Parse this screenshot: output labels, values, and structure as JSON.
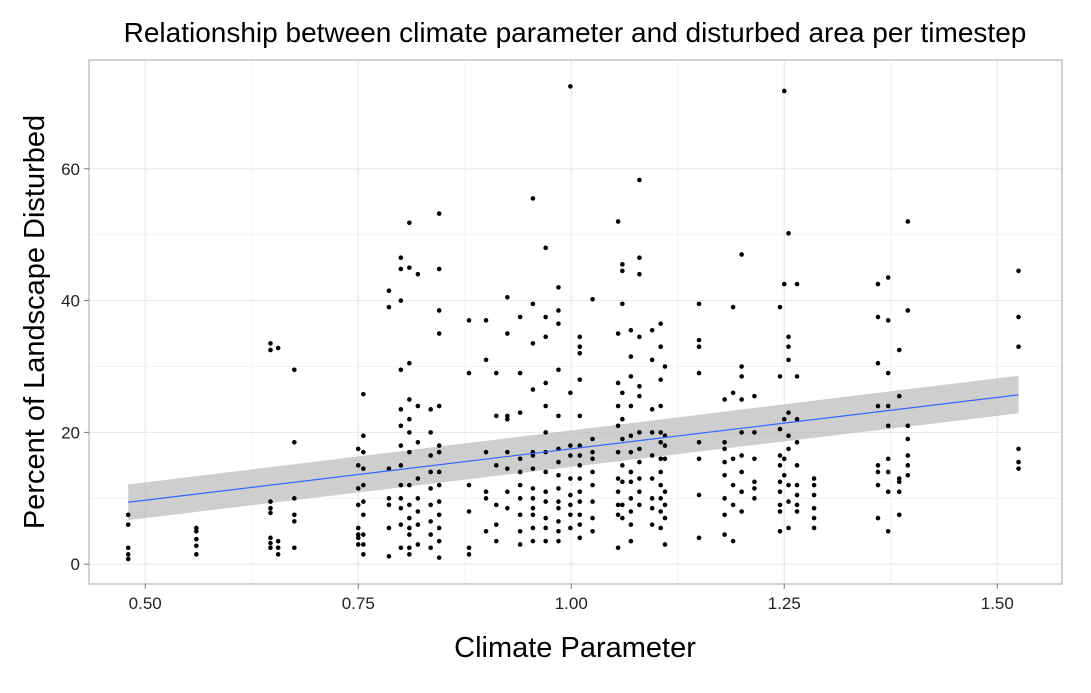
{
  "chart_data": {
    "type": "scatter",
    "title": "Relationship between climate parameter and disturbed area per timestep",
    "xlabel": "Climate Parameter",
    "ylabel": "Percent of Landscape Disturbed",
    "xlim": [
      0.434,
      1.576
    ],
    "ylim": [
      -3,
      76.5
    ],
    "x_ticks": [
      0.5,
      0.75,
      1.0,
      1.25,
      1.5
    ],
    "x_tick_labels": [
      "0.50",
      "0.75",
      "1.00",
      "1.25",
      "1.50"
    ],
    "y_ticks": [
      0,
      20,
      40,
      60
    ],
    "y_tick_labels": [
      "0",
      "20",
      "40",
      "60"
    ],
    "grid": true,
    "fit": {
      "method": "linear",
      "x": [
        0.48,
        1.525
      ],
      "y": [
        9.4,
        25.7
      ],
      "ci_lower": [
        6.7,
        22.9
      ],
      "ci_upper": [
        12.1,
        28.6
      ],
      "line_color": "#3366FF",
      "band_color": "#BEBEBE"
    },
    "points": [
      [
        0.48,
        7.5
      ],
      [
        0.48,
        6.0
      ],
      [
        0.48,
        2.5
      ],
      [
        0.48,
        1.5
      ],
      [
        0.48,
        0.8
      ],
      [
        0.56,
        5.5
      ],
      [
        0.56,
        5.0
      ],
      [
        0.56,
        3.8
      ],
      [
        0.56,
        2.8
      ],
      [
        0.56,
        1.5
      ],
      [
        0.647,
        33.5
      ],
      [
        0.647,
        32.5
      ],
      [
        0.647,
        9.5
      ],
      [
        0.647,
        8.5
      ],
      [
        0.647,
        7.8
      ],
      [
        0.647,
        4.0
      ],
      [
        0.647,
        3.2
      ],
      [
        0.647,
        2.5
      ],
      [
        0.656,
        32.8
      ],
      [
        0.656,
        3.5
      ],
      [
        0.656,
        2.5
      ],
      [
        0.656,
        1.5
      ],
      [
        0.675,
        29.5
      ],
      [
        0.675,
        18.5
      ],
      [
        0.675,
        10.0
      ],
      [
        0.675,
        7.5
      ],
      [
        0.675,
        6.5
      ],
      [
        0.675,
        2.5
      ],
      [
        0.75,
        17.5
      ],
      [
        0.75,
        15.0
      ],
      [
        0.75,
        11.5
      ],
      [
        0.75,
        9.0
      ],
      [
        0.75,
        5.5
      ],
      [
        0.75,
        4.5
      ],
      [
        0.75,
        4.0
      ],
      [
        0.75,
        3.0
      ],
      [
        0.756,
        25.8
      ],
      [
        0.756,
        19.5
      ],
      [
        0.756,
        17.0
      ],
      [
        0.756,
        14.5
      ],
      [
        0.756,
        12.0
      ],
      [
        0.756,
        9.5
      ],
      [
        0.756,
        7.5
      ],
      [
        0.756,
        4.5
      ],
      [
        0.756,
        3.0
      ],
      [
        0.756,
        1.5
      ],
      [
        0.786,
        41.5
      ],
      [
        0.786,
        39.0
      ],
      [
        0.786,
        14.5
      ],
      [
        0.786,
        10.0
      ],
      [
        0.786,
        9.0
      ],
      [
        0.786,
        5.5
      ],
      [
        0.786,
        1.2
      ],
      [
        0.8,
        46.5
      ],
      [
        0.8,
        44.8
      ],
      [
        0.8,
        40.0
      ],
      [
        0.8,
        29.5
      ],
      [
        0.8,
        23.5
      ],
      [
        0.8,
        21.0
      ],
      [
        0.8,
        18.0
      ],
      [
        0.8,
        15.0
      ],
      [
        0.8,
        12.0
      ],
      [
        0.8,
        10.0
      ],
      [
        0.8,
        8.5
      ],
      [
        0.8,
        6.0
      ],
      [
        0.8,
        2.5
      ],
      [
        0.81,
        51.8
      ],
      [
        0.81,
        45.0
      ],
      [
        0.81,
        30.5
      ],
      [
        0.81,
        25.0
      ],
      [
        0.81,
        22.0
      ],
      [
        0.81,
        20.0
      ],
      [
        0.81,
        17.0
      ],
      [
        0.81,
        12.0
      ],
      [
        0.81,
        9.0
      ],
      [
        0.81,
        7.0
      ],
      [
        0.81,
        5.5
      ],
      [
        0.81,
        4.5
      ],
      [
        0.81,
        2.5
      ],
      [
        0.81,
        1.5
      ],
      [
        0.82,
        44.0
      ],
      [
        0.82,
        24.0
      ],
      [
        0.82,
        18.5
      ],
      [
        0.82,
        13.0
      ],
      [
        0.82,
        10.0
      ],
      [
        0.82,
        8.0
      ],
      [
        0.82,
        6.0
      ],
      [
        0.82,
        3.0
      ],
      [
        0.835,
        23.5
      ],
      [
        0.835,
        20.0
      ],
      [
        0.835,
        16.5
      ],
      [
        0.835,
        14.0
      ],
      [
        0.835,
        11.5
      ],
      [
        0.835,
        9.0
      ],
      [
        0.835,
        6.5
      ],
      [
        0.835,
        4.5
      ],
      [
        0.835,
        2.5
      ],
      [
        0.845,
        53.2
      ],
      [
        0.845,
        44.8
      ],
      [
        0.845,
        38.5
      ],
      [
        0.845,
        35.0
      ],
      [
        0.845,
        24.0
      ],
      [
        0.845,
        18.0
      ],
      [
        0.845,
        17.0
      ],
      [
        0.845,
        14.0
      ],
      [
        0.845,
        12.0
      ],
      [
        0.845,
        9.5
      ],
      [
        0.845,
        7.5
      ],
      [
        0.845,
        5.5
      ],
      [
        0.845,
        3.5
      ],
      [
        0.845,
        1.0
      ],
      [
        0.88,
        37.0
      ],
      [
        0.88,
        29.0
      ],
      [
        0.88,
        12.0
      ],
      [
        0.88,
        8.0
      ],
      [
        0.88,
        2.5
      ],
      [
        0.88,
        1.5
      ],
      [
        0.9,
        37.0
      ],
      [
        0.9,
        31.0
      ],
      [
        0.9,
        17.0
      ],
      [
        0.9,
        11.0
      ],
      [
        0.9,
        10.0
      ],
      [
        0.9,
        5.0
      ],
      [
        0.912,
        29.0
      ],
      [
        0.912,
        22.5
      ],
      [
        0.912,
        15.0
      ],
      [
        0.912,
        9.0
      ],
      [
        0.912,
        6.0
      ],
      [
        0.912,
        3.5
      ],
      [
        0.925,
        40.5
      ],
      [
        0.925,
        35.0
      ],
      [
        0.925,
        22.5
      ],
      [
        0.925,
        22.0
      ],
      [
        0.925,
        17.0
      ],
      [
        0.925,
        14.5
      ],
      [
        0.925,
        11.0
      ],
      [
        0.925,
        8.5
      ],
      [
        0.94,
        37.5
      ],
      [
        0.94,
        29.0
      ],
      [
        0.94,
        23.0
      ],
      [
        0.94,
        16.0
      ],
      [
        0.94,
        14.0
      ],
      [
        0.94,
        12.0
      ],
      [
        0.94,
        10.0
      ],
      [
        0.94,
        7.5
      ],
      [
        0.94,
        5.0
      ],
      [
        0.94,
        3.0
      ],
      [
        0.955,
        55.5
      ],
      [
        0.955,
        39.5
      ],
      [
        0.955,
        33.5
      ],
      [
        0.955,
        26.5
      ],
      [
        0.955,
        17.0
      ],
      [
        0.955,
        16.5
      ],
      [
        0.955,
        14.5
      ],
      [
        0.955,
        11.5
      ],
      [
        0.955,
        10.0
      ],
      [
        0.955,
        8.5
      ],
      [
        0.955,
        7.5
      ],
      [
        0.955,
        5.5
      ],
      [
        0.955,
        3.5
      ],
      [
        0.97,
        48.0
      ],
      [
        0.97,
        37.5
      ],
      [
        0.97,
        34.5
      ],
      [
        0.97,
        27.5
      ],
      [
        0.97,
        24.0
      ],
      [
        0.97,
        20.0
      ],
      [
        0.97,
        17.0
      ],
      [
        0.97,
        14.0
      ],
      [
        0.97,
        11.0
      ],
      [
        0.97,
        9.5
      ],
      [
        0.97,
        7.0
      ],
      [
        0.97,
        5.5
      ],
      [
        0.97,
        3.5
      ],
      [
        0.985,
        42.0
      ],
      [
        0.985,
        38.5
      ],
      [
        0.985,
        36.5
      ],
      [
        0.985,
        29.5
      ],
      [
        0.985,
        22.5
      ],
      [
        0.985,
        17.5
      ],
      [
        0.985,
        15.5
      ],
      [
        0.985,
        13.5
      ],
      [
        0.985,
        11.5
      ],
      [
        0.985,
        9.5
      ],
      [
        0.985,
        8.5
      ],
      [
        0.985,
        6.5
      ],
      [
        0.985,
        5.0
      ],
      [
        0.985,
        3.5
      ],
      [
        0.999,
        72.5
      ],
      [
        0.999,
        26.0
      ],
      [
        0.999,
        18.0
      ],
      [
        0.999,
        16.5
      ],
      [
        0.999,
        13.0
      ],
      [
        0.999,
        10.5
      ],
      [
        0.999,
        9.0
      ],
      [
        0.999,
        7.5
      ],
      [
        0.999,
        5.5
      ],
      [
        1.01,
        34.5
      ],
      [
        1.01,
        33.0
      ],
      [
        1.01,
        32.0
      ],
      [
        1.01,
        28.0
      ],
      [
        1.01,
        22.5
      ],
      [
        1.01,
        18.0
      ],
      [
        1.01,
        16.5
      ],
      [
        1.01,
        15.0
      ],
      [
        1.01,
        13.0
      ],
      [
        1.01,
        11.0
      ],
      [
        1.01,
        9.5
      ],
      [
        1.01,
        7.5
      ],
      [
        1.01,
        6.0
      ],
      [
        1.01,
        4.0
      ],
      [
        1.025,
        40.2
      ],
      [
        1.025,
        19.0
      ],
      [
        1.025,
        17.0
      ],
      [
        1.025,
        16.0
      ],
      [
        1.025,
        14.0
      ],
      [
        1.025,
        12.0
      ],
      [
        1.025,
        9.5
      ],
      [
        1.025,
        7.0
      ],
      [
        1.025,
        5.0
      ],
      [
        1.055,
        52.0
      ],
      [
        1.055,
        35.0
      ],
      [
        1.055,
        27.5
      ],
      [
        1.055,
        24.0
      ],
      [
        1.055,
        21.0
      ],
      [
        1.055,
        17.0
      ],
      [
        1.055,
        13.0
      ],
      [
        1.055,
        11.0
      ],
      [
        1.055,
        9.0
      ],
      [
        1.055,
        7.5
      ],
      [
        1.055,
        2.5
      ],
      [
        1.06,
        45.5
      ],
      [
        1.06,
        44.5
      ],
      [
        1.06,
        39.5
      ],
      [
        1.06,
        26.0
      ],
      [
        1.06,
        22.0
      ],
      [
        1.06,
        19.0
      ],
      [
        1.06,
        15.0
      ],
      [
        1.06,
        12.5
      ],
      [
        1.06,
        9.0
      ],
      [
        1.06,
        7.0
      ],
      [
        1.07,
        35.5
      ],
      [
        1.07,
        31.5
      ],
      [
        1.07,
        28.5
      ],
      [
        1.07,
        24.0
      ],
      [
        1.07,
        19.5
      ],
      [
        1.07,
        17.0
      ],
      [
        1.07,
        14.0
      ],
      [
        1.07,
        12.5
      ],
      [
        1.07,
        10.0
      ],
      [
        1.07,
        8.0
      ],
      [
        1.07,
        6.0
      ],
      [
        1.07,
        3.5
      ],
      [
        1.08,
        58.3
      ],
      [
        1.08,
        46.5
      ],
      [
        1.08,
        44.0
      ],
      [
        1.08,
        34.5
      ],
      [
        1.08,
        27.0
      ],
      [
        1.08,
        25.5
      ],
      [
        1.08,
        20.0
      ],
      [
        1.08,
        17.5
      ],
      [
        1.08,
        15.5
      ],
      [
        1.08,
        13.0
      ],
      [
        1.08,
        11.0
      ],
      [
        1.08,
        9.0
      ],
      [
        1.095,
        35.5
      ],
      [
        1.095,
        31.0
      ],
      [
        1.095,
        23.5
      ],
      [
        1.095,
        20.0
      ],
      [
        1.095,
        16.5
      ],
      [
        1.095,
        13.0
      ],
      [
        1.095,
        10.0
      ],
      [
        1.095,
        8.5
      ],
      [
        1.095,
        6.0
      ],
      [
        1.105,
        36.5
      ],
      [
        1.105,
        33.0
      ],
      [
        1.105,
        28.0
      ],
      [
        1.105,
        24.0
      ],
      [
        1.105,
        20.0
      ],
      [
        1.105,
        18.5
      ],
      [
        1.105,
        16.0
      ],
      [
        1.105,
        14.0
      ],
      [
        1.105,
        12.0
      ],
      [
        1.105,
        10.0
      ],
      [
        1.105,
        8.0
      ],
      [
        1.105,
        5.5
      ],
      [
        1.11,
        30.0
      ],
      [
        1.11,
        19.5
      ],
      [
        1.11,
        18.0
      ],
      [
        1.11,
        16.0
      ],
      [
        1.11,
        11.0
      ],
      [
        1.11,
        9.0
      ],
      [
        1.11,
        7.0
      ],
      [
        1.11,
        3.0
      ],
      [
        1.15,
        39.5
      ],
      [
        1.15,
        34.0
      ],
      [
        1.15,
        33.0
      ],
      [
        1.15,
        29.0
      ],
      [
        1.15,
        18.5
      ],
      [
        1.15,
        16.0
      ],
      [
        1.15,
        10.5
      ],
      [
        1.15,
        4.0
      ],
      [
        1.18,
        25.0
      ],
      [
        1.18,
        18.5
      ],
      [
        1.18,
        17.5
      ],
      [
        1.18,
        15.5
      ],
      [
        1.18,
        13.5
      ],
      [
        1.18,
        10.0
      ],
      [
        1.18,
        7.5
      ],
      [
        1.18,
        4.5
      ],
      [
        1.19,
        39.0
      ],
      [
        1.19,
        26.0
      ],
      [
        1.19,
        16.0
      ],
      [
        1.19,
        12.0
      ],
      [
        1.19,
        9.0
      ],
      [
        1.19,
        3.5
      ],
      [
        1.2,
        47.0
      ],
      [
        1.2,
        30.0
      ],
      [
        1.2,
        28.5
      ],
      [
        1.2,
        25.0
      ],
      [
        1.2,
        20.0
      ],
      [
        1.2,
        16.5
      ],
      [
        1.2,
        14.0
      ],
      [
        1.2,
        11.0
      ],
      [
        1.2,
        8.0
      ],
      [
        1.215,
        25.5
      ],
      [
        1.215,
        20.0
      ],
      [
        1.215,
        16.0
      ],
      [
        1.215,
        12.5
      ],
      [
        1.215,
        11.5
      ],
      [
        1.215,
        10.0
      ],
      [
        1.245,
        39.0
      ],
      [
        1.245,
        28.5
      ],
      [
        1.245,
        20.5
      ],
      [
        1.245,
        16.5
      ],
      [
        1.245,
        15.0
      ],
      [
        1.245,
        12.5
      ],
      [
        1.245,
        11.0
      ],
      [
        1.245,
        9.0
      ],
      [
        1.245,
        8.0
      ],
      [
        1.245,
        5.0
      ],
      [
        1.25,
        71.8
      ],
      [
        1.25,
        42.5
      ],
      [
        1.25,
        22.0
      ],
      [
        1.25,
        16.0
      ],
      [
        1.25,
        13.5
      ],
      [
        1.255,
        50.2
      ],
      [
        1.255,
        34.5
      ],
      [
        1.255,
        33.0
      ],
      [
        1.255,
        31.0
      ],
      [
        1.255,
        23.0
      ],
      [
        1.255,
        19.5
      ],
      [
        1.255,
        17.5
      ],
      [
        1.255,
        12.0
      ],
      [
        1.255,
        9.5
      ],
      [
        1.255,
        5.5
      ],
      [
        1.265,
        42.5
      ],
      [
        1.265,
        28.5
      ],
      [
        1.265,
        22.0
      ],
      [
        1.265,
        18.5
      ],
      [
        1.265,
        15.0
      ],
      [
        1.265,
        12.0
      ],
      [
        1.265,
        10.5
      ],
      [
        1.265,
        9.0
      ],
      [
        1.265,
        8.0
      ],
      [
        1.285,
        13.0
      ],
      [
        1.285,
        12.0
      ],
      [
        1.285,
        10.5
      ],
      [
        1.285,
        8.5
      ],
      [
        1.285,
        7.0
      ],
      [
        1.285,
        5.5
      ],
      [
        1.36,
        42.5
      ],
      [
        1.36,
        37.5
      ],
      [
        1.36,
        30.5
      ],
      [
        1.36,
        24.0
      ],
      [
        1.36,
        15.0
      ],
      [
        1.36,
        14.0
      ],
      [
        1.36,
        12.0
      ],
      [
        1.36,
        7.0
      ],
      [
        1.372,
        43.5
      ],
      [
        1.372,
        37.0
      ],
      [
        1.372,
        29.0
      ],
      [
        1.372,
        24.0
      ],
      [
        1.372,
        21.0
      ],
      [
        1.372,
        16.0
      ],
      [
        1.372,
        14.0
      ],
      [
        1.372,
        11.0
      ],
      [
        1.372,
        5.0
      ],
      [
        1.385,
        32.5
      ],
      [
        1.385,
        25.5
      ],
      [
        1.385,
        13.0
      ],
      [
        1.385,
        12.5
      ],
      [
        1.385,
        11.0
      ],
      [
        1.385,
        7.5
      ],
      [
        1.395,
        52.0
      ],
      [
        1.395,
        38.5
      ],
      [
        1.395,
        21.0
      ],
      [
        1.395,
        19.0
      ],
      [
        1.395,
        16.5
      ],
      [
        1.395,
        15.0
      ],
      [
        1.395,
        13.5
      ],
      [
        1.525,
        44.5
      ],
      [
        1.525,
        37.5
      ],
      [
        1.525,
        33.0
      ],
      [
        1.525,
        17.5
      ],
      [
        1.525,
        15.5
      ],
      [
        1.525,
        14.5
      ]
    ]
  }
}
